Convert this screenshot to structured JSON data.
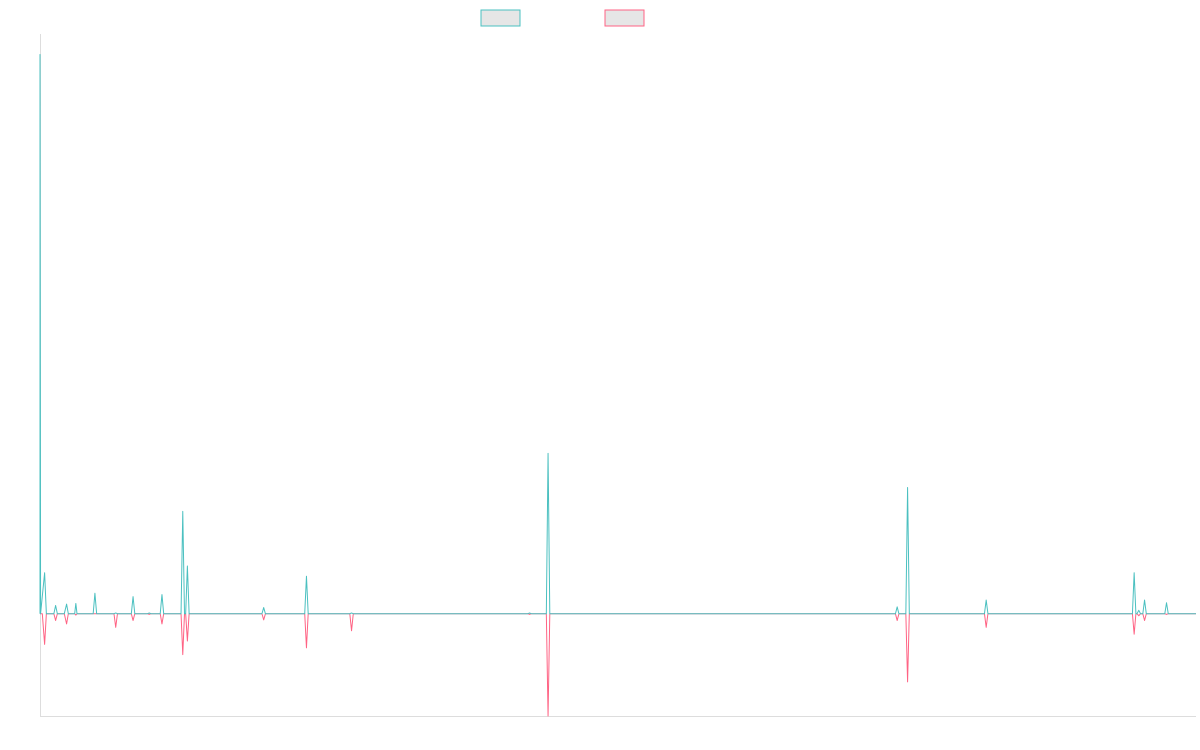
{
  "colors": {
    "series_a": "#4bc0c0",
    "series_b": "#ff6384",
    "legend_fill": "#e6e6e6",
    "axis": "#dddddd",
    "background": "#ffffff"
  },
  "legend": {
    "placement": "top-center"
  },
  "chart_data": {
    "type": "line",
    "title": "",
    "xlabel": "",
    "ylabel": "",
    "grid": false,
    "x_range": [
      0,
      1000
    ],
    "ylim": [
      -1.5,
      8.5
    ],
    "series": [
      {
        "color": "#4bc0c0",
        "points": [
          [
            0,
            0
          ],
          [
            0.01,
            8.2
          ],
          [
            0.5,
            0
          ],
          [
            4,
            0.6
          ],
          [
            5.5,
            0
          ],
          [
            12,
            0
          ],
          [
            13.5,
            0.12
          ],
          [
            15,
            0
          ],
          [
            21,
            0
          ],
          [
            23,
            0.14
          ],
          [
            24.5,
            0
          ],
          [
            30,
            0
          ],
          [
            31,
            0.15
          ],
          [
            32,
            0
          ],
          [
            46,
            0
          ],
          [
            47.5,
            0.3
          ],
          [
            49,
            0
          ],
          [
            64,
            0
          ],
          [
            65.5,
            0.01
          ],
          [
            67,
            0
          ],
          [
            79,
            0
          ],
          [
            80.5,
            0.25
          ],
          [
            82,
            0
          ],
          [
            93,
            0
          ],
          [
            94.5,
            0.01
          ],
          [
            96,
            0
          ],
          [
            104,
            0
          ],
          [
            105.5,
            0.28
          ],
          [
            107,
            0
          ],
          [
            122,
            0
          ],
          [
            123.5,
            1.5
          ],
          [
            125,
            0
          ],
          [
            126,
            0
          ],
          [
            127.5,
            0.7
          ],
          [
            129,
            0
          ],
          [
            192,
            0
          ],
          [
            193.5,
            0.09
          ],
          [
            195,
            0
          ],
          [
            229,
            0
          ],
          [
            230.5,
            0.55
          ],
          [
            232,
            0
          ],
          [
            268,
            0
          ],
          [
            269.5,
            0.01
          ],
          [
            271,
            0
          ],
          [
            422,
            0
          ],
          [
            423.5,
            0.01
          ],
          [
            425,
            0
          ],
          [
            438,
            0
          ],
          [
            439.5,
            2.35
          ],
          [
            441,
            0
          ],
          [
            740,
            0
          ],
          [
            741.5,
            0.1
          ],
          [
            743,
            0
          ],
          [
            749,
            0
          ],
          [
            750.5,
            1.85
          ],
          [
            752,
            0
          ],
          [
            817,
            0
          ],
          [
            818.5,
            0.2
          ],
          [
            820,
            0
          ],
          [
            945,
            0
          ],
          [
            946.5,
            0.6
          ],
          [
            948,
            0
          ],
          [
            949,
            0
          ],
          [
            950.5,
            0.05
          ],
          [
            952,
            0
          ],
          [
            954,
            0
          ],
          [
            955.5,
            0.2
          ],
          [
            957,
            0
          ],
          [
            973,
            0
          ],
          [
            974.5,
            0.16
          ],
          [
            976,
            0
          ],
          [
            1000,
            0
          ]
        ]
      },
      {
        "color": "#ff6384",
        "points": [
          [
            0,
            0
          ],
          [
            2,
            0
          ],
          [
            4,
            -0.45
          ],
          [
            5.5,
            0
          ],
          [
            12,
            0
          ],
          [
            13.5,
            -0.1
          ],
          [
            15,
            0
          ],
          [
            21,
            0
          ],
          [
            23,
            -0.15
          ],
          [
            24.5,
            0
          ],
          [
            30,
            0
          ],
          [
            31,
            -0.02
          ],
          [
            32,
            0
          ],
          [
            64,
            0
          ],
          [
            65.5,
            -0.2
          ],
          [
            67,
            0
          ],
          [
            79,
            0
          ],
          [
            80.5,
            -0.1
          ],
          [
            82,
            0
          ],
          [
            93,
            0
          ],
          [
            94.5,
            -0.01
          ],
          [
            96,
            0
          ],
          [
            104,
            0
          ],
          [
            105.5,
            -0.15
          ],
          [
            107,
            0
          ],
          [
            122,
            0
          ],
          [
            123.5,
            -0.6
          ],
          [
            125,
            0
          ],
          [
            126,
            0
          ],
          [
            127.5,
            -0.4
          ],
          [
            129,
            0
          ],
          [
            192,
            0
          ],
          [
            193.5,
            -0.09
          ],
          [
            195,
            0
          ],
          [
            229,
            0
          ],
          [
            230.5,
            -0.5
          ],
          [
            232,
            0
          ],
          [
            268,
            0
          ],
          [
            269.5,
            -0.25
          ],
          [
            271,
            0
          ],
          [
            422,
            0
          ],
          [
            423.5,
            -0.01
          ],
          [
            425,
            0
          ],
          [
            438,
            0
          ],
          [
            439.5,
            -1.5
          ],
          [
            441,
            0
          ],
          [
            740,
            0
          ],
          [
            741.5,
            -0.1
          ],
          [
            743,
            0
          ],
          [
            749,
            0
          ],
          [
            750.5,
            -1.0
          ],
          [
            752,
            0
          ],
          [
            817,
            0
          ],
          [
            818.5,
            -0.2
          ],
          [
            820,
            0
          ],
          [
            945,
            0
          ],
          [
            946.5,
            -0.3
          ],
          [
            948,
            0
          ],
          [
            949,
            0
          ],
          [
            950.5,
            -0.03
          ],
          [
            952,
            0
          ],
          [
            954,
            0
          ],
          [
            955.5,
            -0.1
          ],
          [
            957,
            0
          ],
          [
            973,
            0
          ],
          [
            974.5,
            -0.01
          ],
          [
            976,
            0
          ],
          [
            1000,
            0
          ]
        ]
      }
    ]
  }
}
